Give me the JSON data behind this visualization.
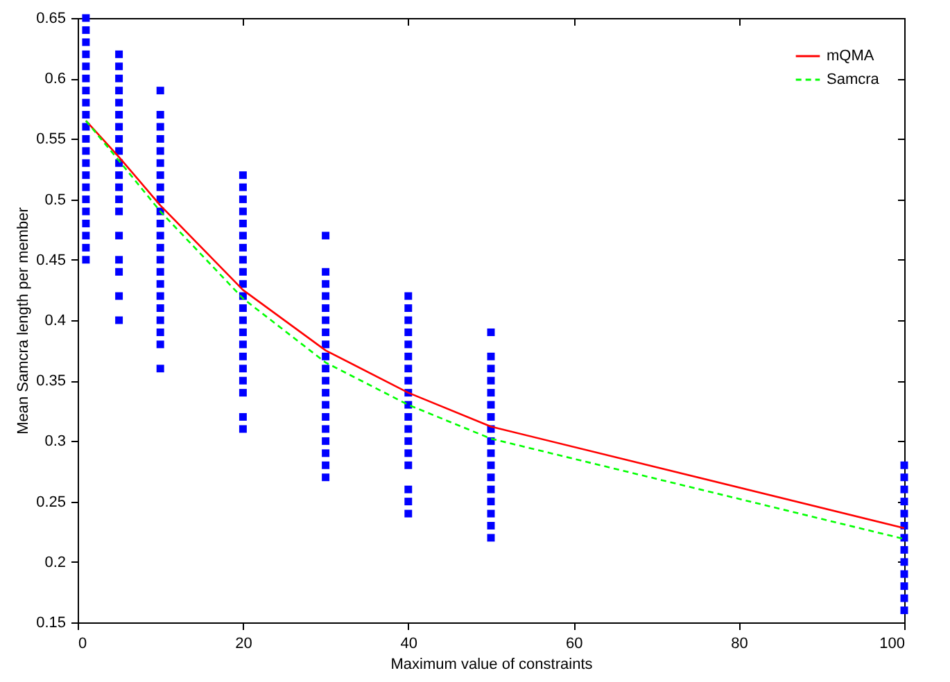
{
  "chart_data": {
    "type": "line",
    "xlabel": "Maximum value of constraints",
    "ylabel": "Mean Samcra length per member",
    "xlim": [
      0,
      100
    ],
    "xticks": [
      0,
      20,
      40,
      60,
      80,
      100
    ],
    "ylim": [
      0.15,
      0.65
    ],
    "yticks": [
      0.15,
      0.2,
      0.25,
      0.3,
      0.35,
      0.4,
      0.45,
      0.5,
      0.55,
      0.6,
      0.65
    ],
    "grid": false,
    "legend": "top right",
    "series": [
      {
        "type": "scatter",
        "color": "#0000ff",
        "marker": "square",
        "x": [
          1,
          1,
          1,
          1,
          1,
          1,
          1,
          1,
          1,
          1,
          1,
          1,
          1,
          1,
          1,
          1,
          1,
          1,
          1,
          1,
          1,
          5,
          5,
          5,
          5,
          5,
          5,
          5,
          5,
          5,
          5,
          5,
          5,
          5,
          5,
          5,
          5,
          5,
          5,
          5,
          10,
          10,
          10,
          10,
          10,
          10,
          10,
          10,
          10,
          10,
          10,
          10,
          10,
          10,
          10,
          10,
          10,
          10,
          10,
          10,
          10,
          10,
          20,
          20,
          20,
          20,
          20,
          20,
          20,
          20,
          20,
          20,
          20,
          20,
          20,
          20,
          20,
          20,
          20,
          20,
          20,
          20,
          20,
          30,
          30,
          30,
          30,
          30,
          30,
          30,
          30,
          30,
          30,
          30,
          30,
          30,
          30,
          30,
          30,
          30,
          30,
          30,
          40,
          40,
          40,
          40,
          40,
          40,
          40,
          40,
          40,
          40,
          40,
          40,
          40,
          40,
          40,
          40,
          40,
          40,
          50,
          50,
          50,
          50,
          50,
          50,
          50,
          50,
          50,
          50,
          50,
          50,
          50,
          50,
          50,
          50,
          50,
          100,
          100,
          100,
          100,
          100,
          100,
          100,
          100,
          100,
          100,
          100,
          100,
          100
        ],
        "values": [
          0.45,
          0.46,
          0.47,
          0.48,
          0.49,
          0.5,
          0.51,
          0.52,
          0.53,
          0.54,
          0.55,
          0.56,
          0.57,
          0.58,
          0.59,
          0.6,
          0.61,
          0.62,
          0.63,
          0.64,
          0.65,
          0.4,
          0.42,
          0.44,
          0.45,
          0.47,
          0.49,
          0.5,
          0.51,
          0.52,
          0.53,
          0.54,
          0.55,
          0.56,
          0.57,
          0.58,
          0.59,
          0.6,
          0.61,
          0.62,
          0.36,
          0.38,
          0.39,
          0.4,
          0.41,
          0.42,
          0.43,
          0.44,
          0.45,
          0.46,
          0.47,
          0.48,
          0.49,
          0.5,
          0.51,
          0.52,
          0.53,
          0.54,
          0.55,
          0.56,
          0.57,
          0.59,
          0.31,
          0.32,
          0.34,
          0.35,
          0.36,
          0.37,
          0.38,
          0.39,
          0.4,
          0.41,
          0.42,
          0.43,
          0.44,
          0.45,
          0.46,
          0.47,
          0.48,
          0.49,
          0.5,
          0.51,
          0.52,
          0.27,
          0.28,
          0.29,
          0.3,
          0.31,
          0.32,
          0.33,
          0.34,
          0.35,
          0.36,
          0.37,
          0.38,
          0.39,
          0.4,
          0.41,
          0.42,
          0.43,
          0.44,
          0.47,
          0.24,
          0.25,
          0.26,
          0.28,
          0.29,
          0.3,
          0.31,
          0.32,
          0.33,
          0.34,
          0.35,
          0.36,
          0.37,
          0.38,
          0.39,
          0.4,
          0.41,
          0.42,
          0.22,
          0.23,
          0.24,
          0.25,
          0.26,
          0.27,
          0.28,
          0.29,
          0.3,
          0.31,
          0.32,
          0.33,
          0.34,
          0.35,
          0.36,
          0.37,
          0.39,
          0.16,
          0.17,
          0.18,
          0.19,
          0.2,
          0.21,
          0.22,
          0.23,
          0.24,
          0.25,
          0.26,
          0.27,
          0.28
        ]
      },
      {
        "name": "mQMA",
        "color": "#ff0000",
        "line_style": "solid",
        "x": [
          1,
          5,
          10,
          20,
          30,
          40,
          50,
          100
        ],
        "values": [
          0.565,
          0.535,
          0.495,
          0.425,
          0.375,
          0.34,
          0.312,
          0.228
        ]
      },
      {
        "name": "Samcra",
        "color": "#00ff00",
        "line_style": "dashed",
        "x": [
          1,
          5,
          10,
          20,
          30,
          40,
          50,
          100
        ],
        "values": [
          0.565,
          0.532,
          0.49,
          0.418,
          0.365,
          0.33,
          0.302,
          0.219
        ]
      }
    ]
  }
}
